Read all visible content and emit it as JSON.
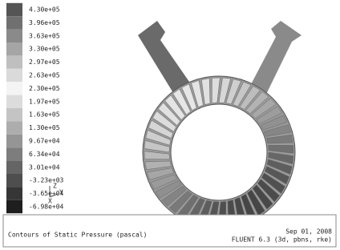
{
  "legend": {
    "labels": [
      "4.30e+05",
      "3.96e+05",
      "3.63e+05",
      "3.30e+05",
      "2.97e+05",
      "2.63e+05",
      "2.30e+05",
      "1.97e+05",
      "1.63e+05",
      "1.30e+05",
      "9.67e+04",
      "6.34e+04",
      "3.01e+04",
      "-3.23e+03",
      "-3.65e+04",
      "-6.98e+04"
    ]
  },
  "triad": {
    "z": "Z",
    "y": "Y",
    "x": "X"
  },
  "footer": {
    "title": "Contours of Static Pressure (pascal)",
    "date": "Sep 01, 2008",
    "version": "FLUENT 6.3 (3d, pbns, rke)"
  }
}
